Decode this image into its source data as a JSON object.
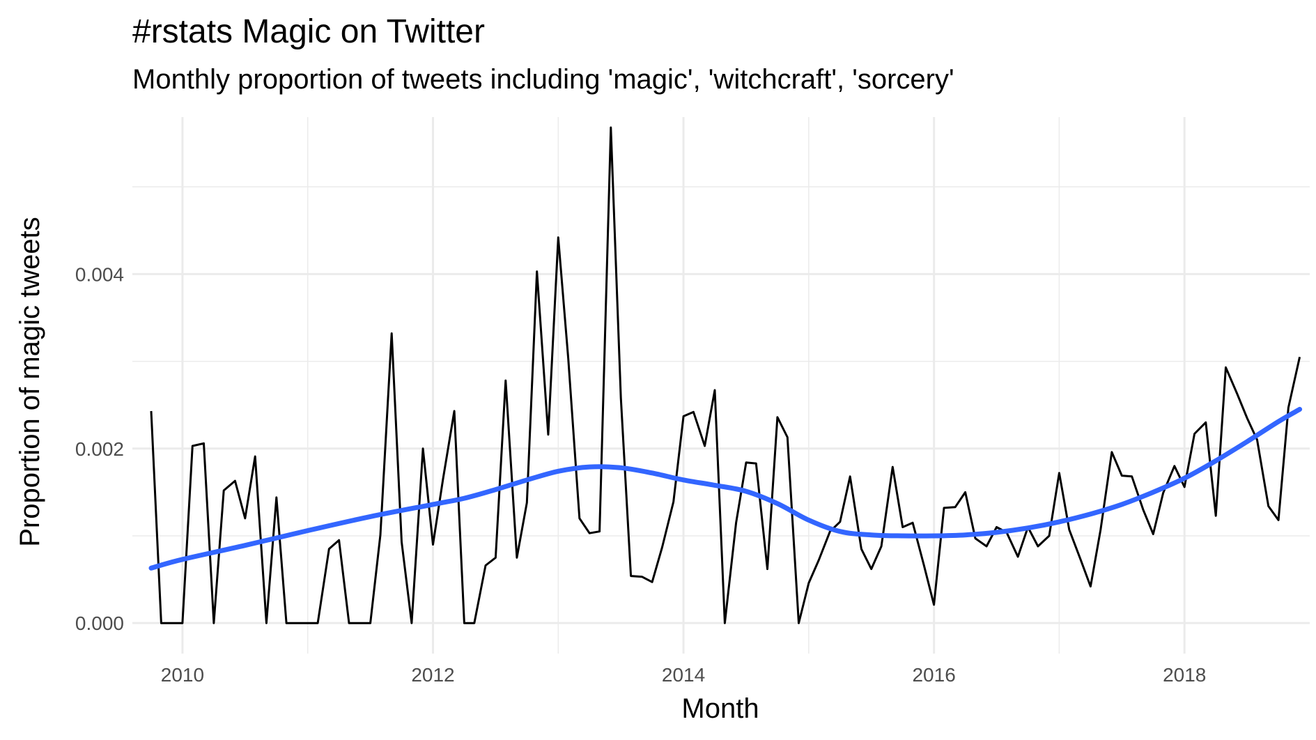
{
  "chart_data": {
    "type": "line",
    "title": "#rstats Magic on Twitter",
    "subtitle": "Monthly proportion of tweets including 'magic', 'witchcraft', 'sorcery'",
    "xlabel": "Month",
    "ylabel": "Proportion of magic tweets",
    "xlim": [
      2009.6,
      2019.0
    ],
    "ylim": [
      -0.00035,
      0.0058
    ],
    "x_ticks": [
      {
        "value": 2010,
        "label": "2010"
      },
      {
        "value": 2012,
        "label": "2012"
      },
      {
        "value": 2014,
        "label": "2014"
      },
      {
        "value": 2016,
        "label": "2016"
      },
      {
        "value": 2018,
        "label": "2018"
      }
    ],
    "y_ticks": [
      {
        "value": 0.0,
        "label": "0.000"
      },
      {
        "value": 0.002,
        "label": "0.002"
      },
      {
        "value": 0.004,
        "label": "0.004"
      }
    ],
    "grid": true,
    "legend": "none",
    "series": [
      {
        "color": "#000000",
        "x": [
          2009.75,
          2009.83,
          2009.92,
          2010.0,
          2010.08,
          2010.17,
          2010.25,
          2010.33,
          2010.42,
          2010.5,
          2010.58,
          2010.67,
          2010.75,
          2010.83,
          2010.92,
          2011.0,
          2011.08,
          2011.17,
          2011.25,
          2011.33,
          2011.42,
          2011.5,
          2011.58,
          2011.67,
          2011.75,
          2011.83,
          2011.92,
          2012.0,
          2012.08,
          2012.17,
          2012.25,
          2012.33,
          2012.42,
          2012.5,
          2012.58,
          2012.67,
          2012.75,
          2012.83,
          2012.92,
          2013.0,
          2013.08,
          2013.17,
          2013.25,
          2013.33,
          2013.42,
          2013.5,
          2013.58,
          2013.67,
          2013.75,
          2013.83,
          2013.92,
          2014.0,
          2014.08,
          2014.17,
          2014.25,
          2014.33,
          2014.42,
          2014.5,
          2014.58,
          2014.67,
          2014.75,
          2014.83,
          2014.92,
          2015.0,
          2015.08,
          2015.17,
          2015.25,
          2015.33,
          2015.42,
          2015.5,
          2015.58,
          2015.67,
          2015.75,
          2015.83,
          2015.92,
          2016.0,
          2016.08,
          2016.17,
          2016.25,
          2016.33,
          2016.42,
          2016.5,
          2016.58,
          2016.67,
          2016.75,
          2016.83,
          2016.92,
          2017.0,
          2017.08,
          2017.17,
          2017.25,
          2017.33,
          2017.42,
          2017.5,
          2017.58,
          2017.67,
          2017.75,
          2017.83,
          2017.92,
          2018.0,
          2018.08,
          2018.17,
          2018.25,
          2018.33,
          2018.42,
          2018.5,
          2018.58,
          2018.67,
          2018.75,
          2018.83,
          2018.92
        ],
        "values": [
          0.00243,
          0.0,
          0.0,
          0.0,
          0.00203,
          0.00206,
          0.0,
          0.00152,
          0.00163,
          0.0012,
          0.00191,
          0.0,
          0.00144,
          0.0,
          0.0,
          0.0,
          0.0,
          0.00085,
          0.00095,
          0.0,
          0.0,
          0.0,
          0.00101,
          0.00332,
          0.00093,
          0.0,
          0.002,
          0.0009,
          0.00165,
          0.00243,
          0.0,
          0.0,
          0.00066,
          0.00075,
          0.00278,
          0.00075,
          0.00138,
          0.00403,
          0.00216,
          0.00442,
          0.00303,
          0.0012,
          0.00103,
          0.00105,
          0.00568,
          0.00258,
          0.00054,
          0.00053,
          0.00047,
          0.00087,
          0.00139,
          0.00237,
          0.00242,
          0.00203,
          0.00267,
          0.0,
          0.00115,
          0.00184,
          0.00183,
          0.00062,
          0.00236,
          0.00213,
          0.0,
          0.00046,
          0.00072,
          0.00105,
          0.00116,
          0.00168,
          0.00085,
          0.00062,
          0.00088,
          0.00179,
          0.0011,
          0.00115,
          0.00066,
          0.00021,
          0.00132,
          0.00133,
          0.0015,
          0.00097,
          0.00088,
          0.0011,
          0.00104,
          0.00076,
          0.0011,
          0.00088,
          0.001,
          0.00172,
          0.00107,
          0.00073,
          0.00042,
          0.00107,
          0.00196,
          0.00169,
          0.00168,
          0.0013,
          0.00102,
          0.00149,
          0.0018,
          0.00156,
          0.00217,
          0.0023,
          0.00123,
          0.00293,
          0.00263,
          0.00235,
          0.0021,
          0.00134,
          0.00118,
          0.00247,
          0.00305
        ]
      },
      {
        "color": "#3366FF",
        "smooth": true,
        "x": [
          2009.75,
          2010.0,
          2010.5,
          2011.0,
          2011.5,
          2012.0,
          2012.25,
          2012.5,
          2012.75,
          2013.0,
          2013.25,
          2013.5,
          2013.75,
          2014.0,
          2014.25,
          2014.5,
          2014.75,
          2015.0,
          2015.25,
          2015.5,
          2015.75,
          2016.0,
          2016.25,
          2016.5,
          2016.75,
          2017.0,
          2017.25,
          2017.5,
          2017.75,
          2018.0,
          2018.25,
          2018.5,
          2018.75,
          2018.92
        ],
        "values": [
          0.00063,
          0.00073,
          0.00089,
          0.00106,
          0.00122,
          0.00136,
          0.00143,
          0.00153,
          0.00164,
          0.00174,
          0.00179,
          0.00178,
          0.00172,
          0.00164,
          0.00158,
          0.00151,
          0.00137,
          0.00118,
          0.00105,
          0.00101,
          0.001,
          0.001,
          0.00101,
          0.00104,
          0.00109,
          0.00116,
          0.00125,
          0.00136,
          0.0015,
          0.00166,
          0.00186,
          0.00208,
          0.00231,
          0.00245
        ]
      }
    ]
  }
}
